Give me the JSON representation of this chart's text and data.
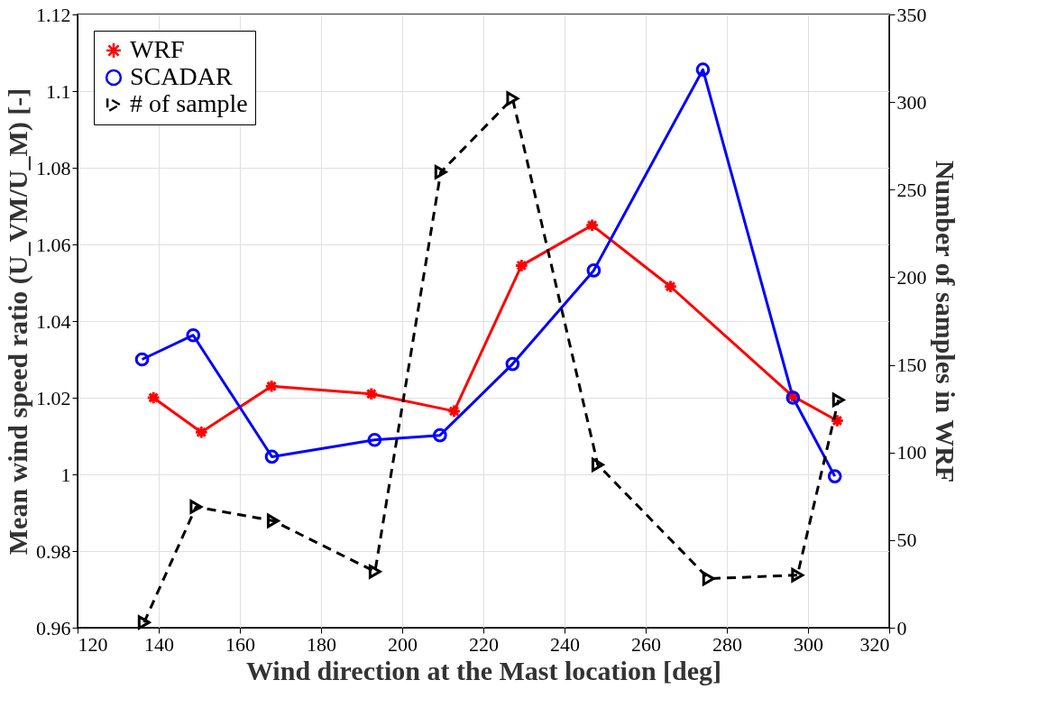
{
  "chart_data": {
    "type": "line",
    "xlabel": "Wind direction at the Mast location [deg]",
    "ylabel": "Mean wind speed ratio (U_VM/U_M) [-]",
    "y2label": "Number of samples in WRF",
    "xlim": [
      120,
      320
    ],
    "xticks": [
      120,
      140,
      160,
      180,
      200,
      220,
      240,
      260,
      280,
      300,
      320
    ],
    "ylim": [
      0.96,
      1.12
    ],
    "yticks": [
      0.96,
      0.98,
      1,
      1.02,
      1.04,
      1.06,
      1.08,
      1.1,
      1.12
    ],
    "y2lim": [
      0,
      350
    ],
    "y2ticks": [
      0,
      50,
      100,
      150,
      200,
      250,
      300,
      350
    ],
    "grid": true,
    "legend": "top left",
    "series": [
      {
        "name": "WRF",
        "color": "#ff0000",
        "marker": "cross",
        "line_style": "solid",
        "x": [
          138.7,
          150.5,
          167.8,
          192.4,
          212.8,
          229.4,
          246.8,
          266.1,
          296.1,
          307.2
        ],
        "values": [
          1.02,
          1.011,
          1.023,
          1.021,
          1.0165,
          1.0545,
          1.065,
          1.049,
          1.0205,
          1.014
        ]
      },
      {
        "name": "SCADAR",
        "color": "#0000ff",
        "marker": "circle",
        "line_style": "solid",
        "x": [
          135.9,
          148.5,
          167.9,
          193.2,
          209.3,
          227.2,
          247.2,
          274.1,
          296.3,
          306.6
        ],
        "values": [
          1.03,
          1.0363,
          1.0046,
          1.009,
          1.0102,
          1.0288,
          1.0532,
          1.1056,
          1.02,
          0.9995
        ]
      },
      {
        "name": "# of sample",
        "color": "#000000",
        "marker": "triangle",
        "line_style": "dashed",
        "axis": "y2",
        "x": [
          136.4,
          149.2,
          168.2,
          193.3,
          209.5,
          227.2,
          248.2,
          275.5,
          297.4,
          307.5
        ],
        "values": [
          3,
          69,
          61,
          32,
          260,
          302,
          93,
          28,
          30,
          130
        ]
      }
    ]
  }
}
